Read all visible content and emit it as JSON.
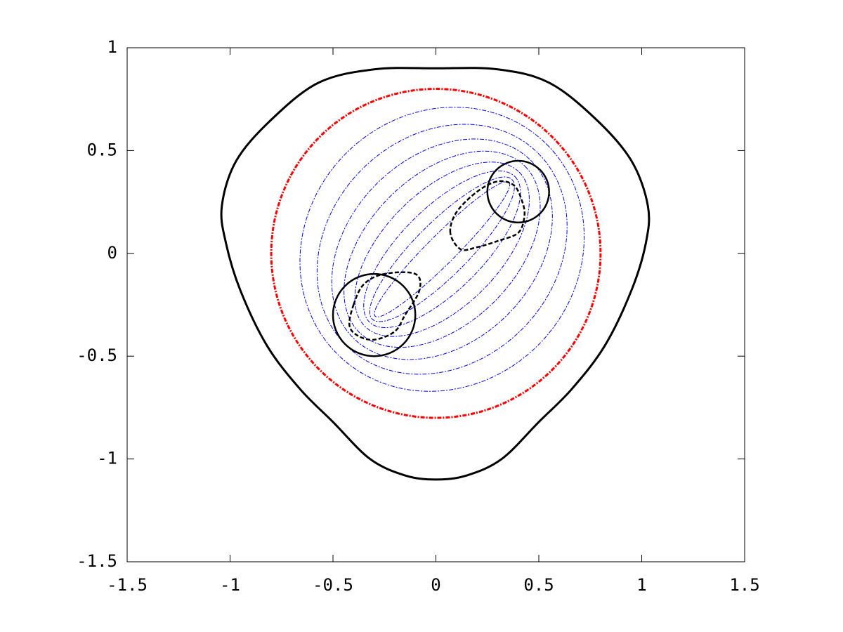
{
  "chart_data": {
    "type": "line",
    "xlim": [
      -1.5,
      1.5
    ],
    "ylim": [
      -1.5,
      1
    ],
    "xticks": [
      -1.5,
      -1,
      -0.5,
      0,
      0.5,
      1,
      1.5
    ],
    "yticks": [
      -1.5,
      -1,
      -0.5,
      0,
      0.5,
      1
    ],
    "series": [
      {
        "color": "#000000",
        "style": "solid",
        "width": 3,
        "x": [
          0,
          0.3,
          0.55,
          0.78,
          0.95,
          1.03,
          1.02,
          0.95,
          0.82,
          0.66,
          0.5,
          0.32,
          0.15,
          0,
          -0.15,
          -0.32,
          -0.5,
          -0.66,
          -0.82,
          -0.95,
          -1.02,
          -1.04,
          -0.97,
          -0.8,
          -0.57,
          -0.3
        ],
        "values": [
          0.9,
          0.895,
          0.83,
          0.65,
          0.45,
          0.23,
          0.05,
          -0.18,
          -0.45,
          -0.66,
          -0.82,
          -1.0,
          -1.08,
          -1.1,
          -1.08,
          -1.0,
          -0.82,
          -0.66,
          -0.45,
          -0.18,
          0.05,
          0.23,
          0.45,
          0.65,
          0.83,
          0.895
        ]
      },
      {
        "color": "#000000",
        "style": "dashed",
        "width": 2.5,
        "x": [
          0.07,
          0.1,
          0.2,
          0.3,
          0.38,
          0.42,
          0.43,
          0.4,
          0.3,
          0.2,
          0.12
        ],
        "values": [
          0.1,
          0.2,
          0.3,
          0.35,
          0.33,
          0.25,
          0.18,
          0.1,
          0.06,
          0.03,
          0.02
        ]
      },
      {
        "color": "#000000",
        "style": "dashed",
        "width": 2.5,
        "x": [
          -0.4,
          -0.35,
          -0.25,
          -0.1,
          -0.08,
          -0.15,
          -0.2,
          -0.3,
          -0.38,
          -0.42
        ],
        "values": [
          -0.25,
          -0.15,
          -0.1,
          -0.1,
          -0.18,
          -0.3,
          -0.38,
          -0.42,
          -0.4,
          -0.35
        ]
      }
    ],
    "circles": [
      {
        "color": "#ff0000",
        "style": "dashdot",
        "width": 3,
        "cx": 0,
        "cy": 0,
        "r": 0.8
      },
      {
        "color": "#000000",
        "style": "solid",
        "width": 2.5,
        "cx": 0.4,
        "cy": 0.3,
        "r": 0.15
      },
      {
        "color": "#000000",
        "style": "solid",
        "width": 2.5,
        "cx": -0.3,
        "cy": -0.3,
        "r": 0.2
      }
    ],
    "ellipses": [
      {
        "color": "#0000ff",
        "cx": 0.03,
        "cy": 0.02,
        "rx": 0.72,
        "ry": 0.66,
        "angle": 45
      },
      {
        "color": "#0000ff",
        "cx": 0.03,
        "cy": 0.02,
        "rx": 0.66,
        "ry": 0.55,
        "angle": 45
      },
      {
        "color": "#0000ff",
        "cx": 0.03,
        "cy": 0.02,
        "rx": 0.61,
        "ry": 0.45,
        "angle": 45
      },
      {
        "color": "#0000ff",
        "cx": 0.03,
        "cy": 0.02,
        "rx": 0.57,
        "ry": 0.36,
        "angle": 45
      },
      {
        "color": "#0000ff",
        "cx": 0.03,
        "cy": 0.02,
        "rx": 0.53,
        "ry": 0.28,
        "angle": 45
      },
      {
        "color": "#0000ff",
        "cx": 0.03,
        "cy": 0.02,
        "rx": 0.5,
        "ry": 0.2,
        "angle": 45
      },
      {
        "color": "#0000ff",
        "cx": 0.03,
        "cy": 0.02,
        "rx": 0.48,
        "ry": 0.13,
        "angle": 45
      },
      {
        "color": "#0000ff",
        "cx": 0.03,
        "cy": 0.02,
        "rx": 0.46,
        "ry": 0.07,
        "angle": 45
      }
    ]
  }
}
